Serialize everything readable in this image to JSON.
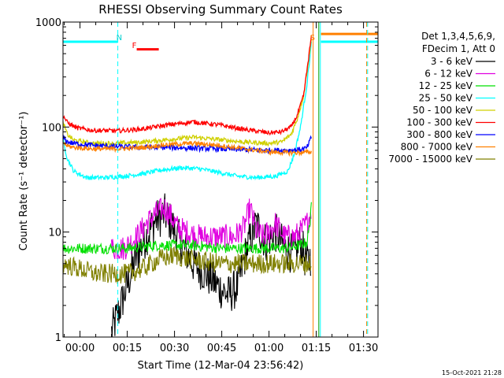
{
  "chart_data": {
    "type": "line",
    "title": "RHESSI Observing Summary Count Rates",
    "xlabel": "Start Time (12-Mar-04 23:56:42)",
    "ylabel": "Count Rate (s⁻¹ detector⁻¹)",
    "yscale": "log",
    "ylim": [
      1,
      1000
    ],
    "xlim_minutes": [
      -5.4,
      94.6
    ],
    "x_ticks": [
      {
        "min": 0,
        "label": "00:00"
      },
      {
        "min": 15,
        "label": "00:15"
      },
      {
        "min": 30,
        "label": "00:30"
      },
      {
        "min": 45,
        "label": "00:45"
      },
      {
        "min": 60,
        "label": "01:00"
      },
      {
        "min": 75,
        "label": "01:15"
      },
      {
        "min": 90,
        "label": "01:30"
      }
    ],
    "y_ticks": [
      {
        "value": 1,
        "label": "1"
      },
      {
        "value": 10,
        "label": "10"
      },
      {
        "value": 100,
        "label": "100"
      },
      {
        "value": 1000,
        "label": "1000"
      }
    ],
    "legend_header": [
      "Det 1,3,4,5,6,9,",
      "FDecim 1, Att 0"
    ],
    "series": [
      {
        "name": "3 - 6 keV",
        "color": "#000000",
        "x": [
          10.0,
          14,
          18,
          21,
          24,
          27,
          29,
          31,
          33,
          36,
          40,
          44,
          47,
          50,
          53,
          56,
          59,
          62,
          65,
          68,
          70,
          72,
          73.5
        ],
        "y": [
          1.1,
          2.5,
          6,
          9,
          13,
          15,
          12,
          9,
          7,
          5,
          4,
          3,
          2.5,
          3,
          7,
          12,
          8,
          10,
          7,
          6,
          8,
          5,
          6
        ]
      },
      {
        "name": "6 - 12 keV",
        "color": "#e000e0",
        "x": [
          10.0,
          14,
          18,
          21,
          24,
          27,
          29,
          31,
          34,
          38,
          42,
          46,
          49,
          52,
          54,
          56,
          58,
          60,
          62,
          65,
          68,
          70,
          72,
          73.5
        ],
        "y": [
          7,
          7,
          9,
          12,
          15,
          17,
          14,
          11,
          10,
          9,
          9,
          9,
          9,
          11,
          17,
          10,
          9,
          10,
          12,
          9,
          9,
          10,
          12,
          16
        ]
      },
      {
        "name": "12 - 25 keV",
        "color": "#00e000",
        "x": [
          -5.4,
          5,
          15,
          25,
          35,
          45,
          55,
          65,
          70,
          72,
          73,
          73.5
        ],
        "y": [
          7,
          7,
          7,
          7.5,
          7.5,
          7,
          7,
          7,
          7.5,
          8,
          12,
          22
        ]
      },
      {
        "name": "25 - 50 keV",
        "color": "#00ffff",
        "x": [
          -5.4,
          -4,
          -2,
          2,
          8,
          14,
          20,
          26,
          32,
          38,
          44,
          50,
          56,
          62,
          66,
          68,
          70,
          72,
          73.5
        ],
        "y": [
          75,
          50,
          38,
          33,
          33,
          34,
          36,
          39,
          41,
          40,
          37,
          34,
          33,
          34,
          38,
          55,
          100,
          250,
          650
        ]
      },
      {
        "name": "50 - 100 keV",
        "color": "#d0d000",
        "x": [
          -5.4,
          -4,
          -2,
          4,
          12,
          20,
          28,
          36,
          44,
          52,
          60,
          64,
          67,
          69,
          71,
          73.5
        ],
        "y": [
          110,
          85,
          75,
          70,
          70,
          72,
          76,
          80,
          76,
          72,
          70,
          72,
          85,
          120,
          200,
          700
        ]
      },
      {
        "name": "100 - 300 keV",
        "color": "#ff0000",
        "x": [
          -5.4,
          -4,
          -1,
          4,
          12,
          20,
          28,
          36,
          44,
          52,
          60,
          64,
          67,
          69,
          71,
          73.5
        ],
        "y": [
          130,
          110,
          98,
          93,
          92,
          96,
          105,
          112,
          105,
          95,
          88,
          90,
          100,
          130,
          200,
          750
        ]
      },
      {
        "name": "300 - 800 keV",
        "color": "#0000ff",
        "x": [
          -5.4,
          -4,
          -2,
          4,
          12,
          20,
          28,
          36,
          44,
          52,
          60,
          66,
          70,
          72,
          73.5
        ],
        "y": [
          80,
          72,
          70,
          67,
          65,
          64,
          64,
          63,
          62,
          61,
          60,
          60,
          61,
          63,
          80
        ]
      },
      {
        "name": "800 - 7000 keV",
        "color": "#ff8000",
        "x": [
          -5.4,
          -4,
          -2,
          4,
          12,
          20,
          28,
          36,
          44,
          52,
          60,
          66,
          70,
          73.5
        ],
        "y": [
          72,
          66,
          64,
          62,
          62,
          64,
          68,
          70,
          67,
          62,
          58,
          57,
          57,
          58
        ]
      },
      {
        "name": "7000 - 15000 keV",
        "color": "#808000",
        "x": [
          -5.4,
          5,
          15,
          20,
          25,
          30,
          35,
          45,
          55,
          65,
          70,
          73.5
        ],
        "y": [
          5,
          4,
          4,
          4.5,
          5.5,
          6,
          5.5,
          5,
          5,
          5,
          5,
          5
        ]
      }
    ],
    "annotations": [
      {
        "text": "N",
        "color": "#00d0d0",
        "x_min": 11.5
      },
      {
        "text": "F",
        "color": "#ff0000",
        "x_min": 16.5
      },
      {
        "text": "S",
        "color": "#ff8000",
        "x_min": 73.0
      }
    ],
    "state_bars": [
      {
        "color": "#00ffff",
        "x_start": -5.4,
        "x_end": 12.0,
        "y": 650
      },
      {
        "color": "#ff0000",
        "x_start": 18.0,
        "x_end": 25.0,
        "y": 550
      },
      {
        "color": "#ff8000",
        "x_start": 76.5,
        "x_end": 94.6,
        "y": 770
      },
      {
        "color": "#00ffff",
        "x_start": 76.5,
        "x_end": 94.6,
        "y": 650
      }
    ],
    "vertical_lines": [
      {
        "x_min": -5.4,
        "color": "#00ffff",
        "style": "solid"
      },
      {
        "x_min": 12.0,
        "color": "#00ffff",
        "style": "dashed"
      },
      {
        "x_min": 74.0,
        "color": "#ff8000",
        "style": "solid"
      },
      {
        "x_min": 75.8,
        "color": "#00a000",
        "style": "solid"
      },
      {
        "x_min": 76.3,
        "color": "#00ffff",
        "style": "solid"
      },
      {
        "x_min": 91.0,
        "color": "#ff8000",
        "style": "dashed"
      },
      {
        "x_min": 91.3,
        "color": "#00ffff",
        "style": "dashed"
      }
    ],
    "footer_date": "15-Oct-2021 21:28"
  }
}
